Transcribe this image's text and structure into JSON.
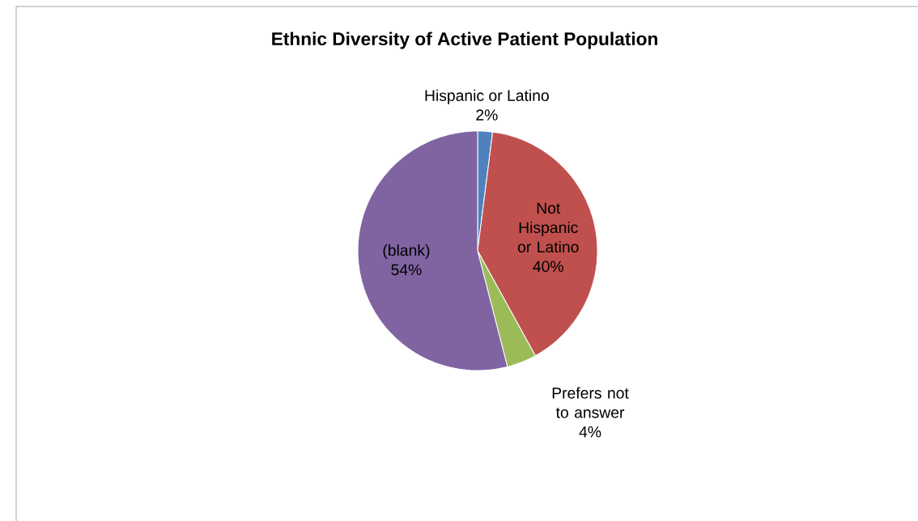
{
  "chart_data": {
    "type": "pie",
    "title": "Ethnic Diversity of Active Patient Population",
    "categories": [
      "Hispanic or Latino",
      "Not Hispanic or Latino",
      "Prefers not to answer",
      "(blank)"
    ],
    "values": [
      2,
      40,
      4,
      54
    ],
    "value_labels": [
      "2%",
      "40%",
      "4%",
      "54%"
    ],
    "colors": [
      "#4f81bd",
      "#c0504d",
      "#9bbb59",
      "#8064a2"
    ]
  }
}
